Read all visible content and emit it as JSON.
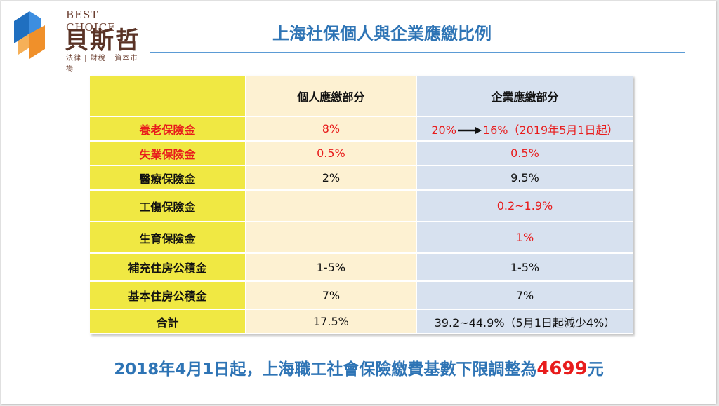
{
  "logo": {
    "en": "BEST CHOICE",
    "cn": "貝斯哲",
    "tagline": "法律 | 財稅 | 資本市場",
    "colors": {
      "blue": "#1f6fc0",
      "orange": "#f0902a",
      "brown": "#5a3326"
    }
  },
  "title": "上海社保個人與企業應繳比例",
  "table": {
    "headers": [
      "",
      "個人應繳部分",
      "企業應繳部分"
    ],
    "rows": [
      {
        "item": "養老保險金",
        "personal": "8%",
        "enterprise_from": "20%",
        "enterprise_to": "16%",
        "enterprise_note": "（2019年5月1日起）",
        "highlight": true,
        "label_red": true
      },
      {
        "item": "失業保險金",
        "personal": "0.5%",
        "enterprise": "0.5%",
        "highlight": true,
        "label_red": true
      },
      {
        "item": "醫療保險金",
        "personal": "2%",
        "enterprise": "9.5%",
        "highlight": false,
        "label_red": false
      },
      {
        "item": "工傷保險金",
        "personal": "",
        "enterprise": "0.2~1.9%",
        "highlight": true,
        "label_red": false
      },
      {
        "item": "生育保險金",
        "personal": "",
        "enterprise": "1%",
        "highlight": true,
        "label_red": false
      },
      {
        "item": "補充住房公積金",
        "personal": "1-5%",
        "enterprise": "1-5%",
        "highlight": false,
        "label_red": false
      },
      {
        "item": "基本住房公積金",
        "personal": "7%",
        "enterprise": "7%",
        "highlight": false,
        "label_red": false
      },
      {
        "item": "合計",
        "personal": "17.5%",
        "enterprise": "39.2~44.9%（5月1日起減少4%）",
        "highlight": false,
        "label_red": false
      }
    ]
  },
  "footer": {
    "text": "2018年4月1日起，上海職工社會保險繳費基數下限調整為",
    "amount": "4699",
    "unit": "元"
  },
  "colors": {
    "title_blue": "#2e74b5",
    "highlight_red": "#e81c1c",
    "col_item_yellow": "#f0e843",
    "col_personal_cream": "#fdf1d2",
    "col_enterprise_blue": "#d7e1ef"
  }
}
